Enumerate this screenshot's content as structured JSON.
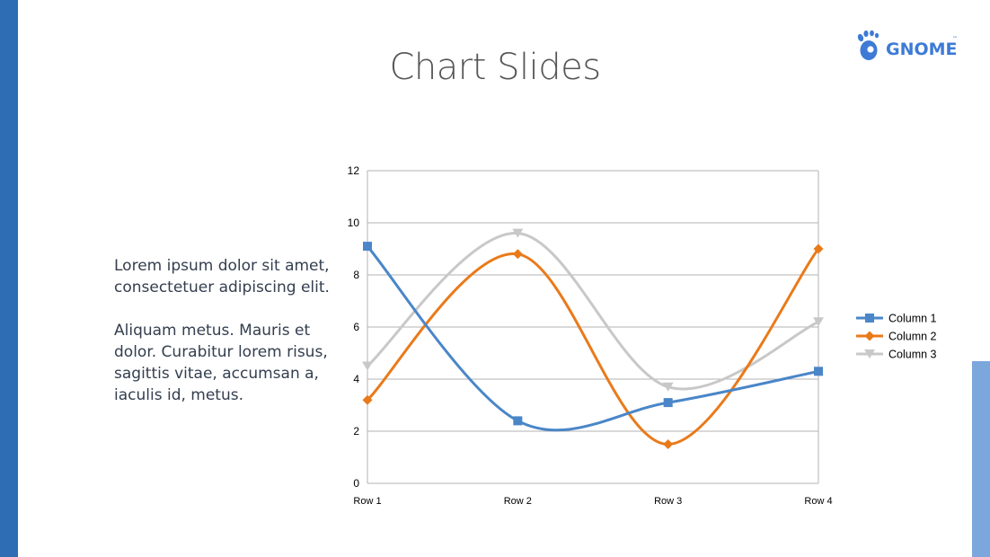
{
  "slide": {
    "title": "Chart Slides",
    "logo_text": "GNOME",
    "logo_tm": "™",
    "paragraphs": [
      "Lorem ipsum dolor sit amet, consectetuer adipiscing elit.",
      "Aliquam metus. Mauris et dolor. Curabitur lorem risus, sagittis vitae, accumsan a, iaculis id, metus."
    ],
    "colors": {
      "accent_bar": "#2e6db4",
      "accent_bar_light": "#7ba7dd",
      "logo": "#3d7bd6"
    }
  },
  "chart_data": {
    "type": "line",
    "categories": [
      "Row 1",
      "Row 2",
      "Row 3",
      "Row 4"
    ],
    "series": [
      {
        "name": "Column 1",
        "values": [
          9.1,
          2.4,
          3.1,
          4.3
        ],
        "color": "#4a86c8",
        "marker": "square"
      },
      {
        "name": "Column 2",
        "values": [
          3.2,
          8.8,
          1.5,
          9.0
        ],
        "color": "#e97a1a",
        "marker": "diamond"
      },
      {
        "name": "Column 3",
        "values": [
          4.5,
          9.6,
          3.7,
          6.2
        ],
        "color": "#c8c8c8",
        "marker": "triangle-down"
      }
    ],
    "ylim": [
      0,
      12
    ],
    "yticks": [
      0,
      2,
      4,
      6,
      8,
      10,
      12
    ],
    "smooth": true,
    "grid": true,
    "legend_position": "right",
    "title": "",
    "xlabel": "",
    "ylabel": ""
  }
}
